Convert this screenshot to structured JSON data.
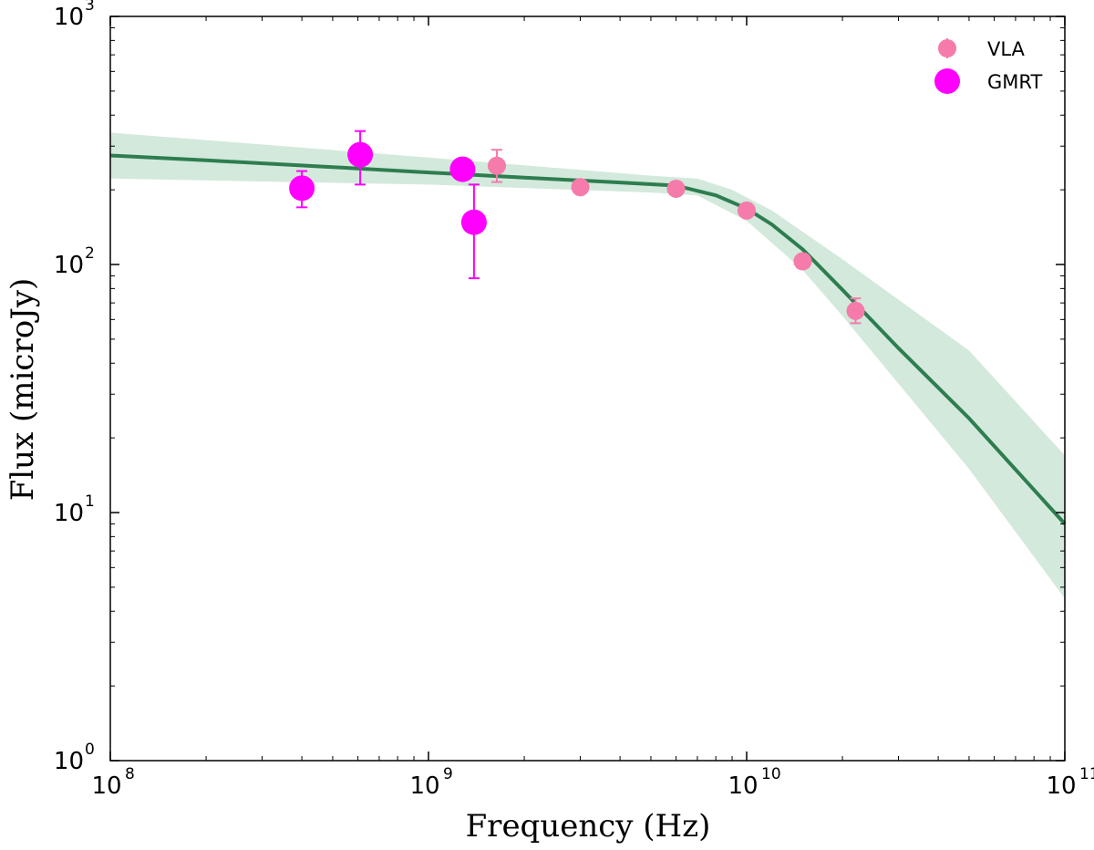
{
  "chart_data": {
    "type": "scatter",
    "title": "",
    "xlabel": "Frequency (Hz)",
    "ylabel": "Flux (microJy)",
    "xscale": "log",
    "yscale": "log",
    "xlim": [
      100000000.0,
      100000000000.0
    ],
    "ylim": [
      1,
      1000
    ],
    "x_ticks": [
      {
        "base": "10",
        "exp": "8",
        "value": 100000000.0
      },
      {
        "base": "10",
        "exp": "9",
        "value": 1000000000.0
      },
      {
        "base": "10",
        "exp": "10",
        "value": 10000000000.0
      },
      {
        "base": "10",
        "exp": "11",
        "value": 100000000000.0
      }
    ],
    "y_ticks": [
      {
        "base": "10",
        "exp": "0",
        "value": 1
      },
      {
        "base": "10",
        "exp": "1",
        "value": 10
      },
      {
        "base": "10",
        "exp": "2",
        "value": 100
      },
      {
        "base": "10",
        "exp": "3",
        "value": 1000
      }
    ],
    "legend": {
      "placement": "top-right",
      "entries": [
        {
          "label": "VLA",
          "color": "#f57bab"
        },
        {
          "label": "GMRT",
          "color": "#ff00ff"
        }
      ]
    },
    "series": [
      {
        "name": "VLA",
        "color": "#f57bab",
        "points": [
          {
            "x": 1640000000.0,
            "y": 250,
            "err_low": 35,
            "err_high": 40
          },
          {
            "x": 3000000000.0,
            "y": 205,
            "err_low": 0,
            "err_high": 0
          },
          {
            "x": 6000000000.0,
            "y": 202,
            "err_low": 0,
            "err_high": 0
          },
          {
            "x": 10000000000.0,
            "y": 165,
            "err_low": 0,
            "err_high": 0
          },
          {
            "x": 15000000000.0,
            "y": 103,
            "err_low": 0,
            "err_high": 0
          },
          {
            "x": 22000000000.0,
            "y": 65,
            "err_low": 7,
            "err_high": 8
          }
        ]
      },
      {
        "name": "GMRT",
        "color": "#ff00ff",
        "points": [
          {
            "x": 400000000.0,
            "y": 203,
            "err_low": 33,
            "err_high": 35
          },
          {
            "x": 610000000.0,
            "y": 277,
            "err_low": 67,
            "err_high": 68
          },
          {
            "x": 1280000000.0,
            "y": 242,
            "err_low": 0,
            "err_high": 0
          },
          {
            "x": 1390000000.0,
            "y": 148,
            "err_low": 60,
            "err_high": 62
          }
        ]
      }
    ],
    "model": {
      "name": "broken power-law fit",
      "line_color": "#2e7d4f",
      "band_color": "#d3e9dc",
      "curve": [
        [
          100000000.0,
          275
        ],
        [
          200000000.0,
          263
        ],
        [
          500000000.0,
          247
        ],
        [
          1000000000.0,
          235
        ],
        [
          2000000000.0,
          224
        ],
        [
          4000000000.0,
          214
        ],
        [
          6000000000.0,
          208
        ],
        [
          8000000000.0,
          190
        ],
        [
          10000000000.0,
          168
        ],
        [
          12000000000.0,
          145
        ],
        [
          15000000000.0,
          115
        ],
        [
          20000000000.0,
          79
        ],
        [
          30000000000.0,
          46
        ],
        [
          50000000000.0,
          24
        ],
        [
          100000000000.0,
          9
        ]
      ],
      "band_upper": [
        [
          100000000.0,
          340
        ],
        [
          1000000000.0,
          270
        ],
        [
          5000000000.0,
          228
        ],
        [
          7000000000.0,
          222
        ],
        [
          9000000000.0,
          200
        ],
        [
          12000000000.0,
          165
        ],
        [
          20000000000.0,
          105
        ],
        [
          50000000000.0,
          45
        ],
        [
          100000000000.0,
          17
        ]
      ],
      "band_lower": [
        [
          100000000.0,
          222
        ],
        [
          1000000000.0,
          210
        ],
        [
          5000000000.0,
          195
        ],
        [
          7000000000.0,
          190
        ],
        [
          10000000000.0,
          150
        ],
        [
          15000000000.0,
          95
        ],
        [
          20000000000.0,
          62
        ],
        [
          50000000000.0,
          15
        ],
        [
          100000000000.0,
          4.5
        ]
      ]
    }
  }
}
